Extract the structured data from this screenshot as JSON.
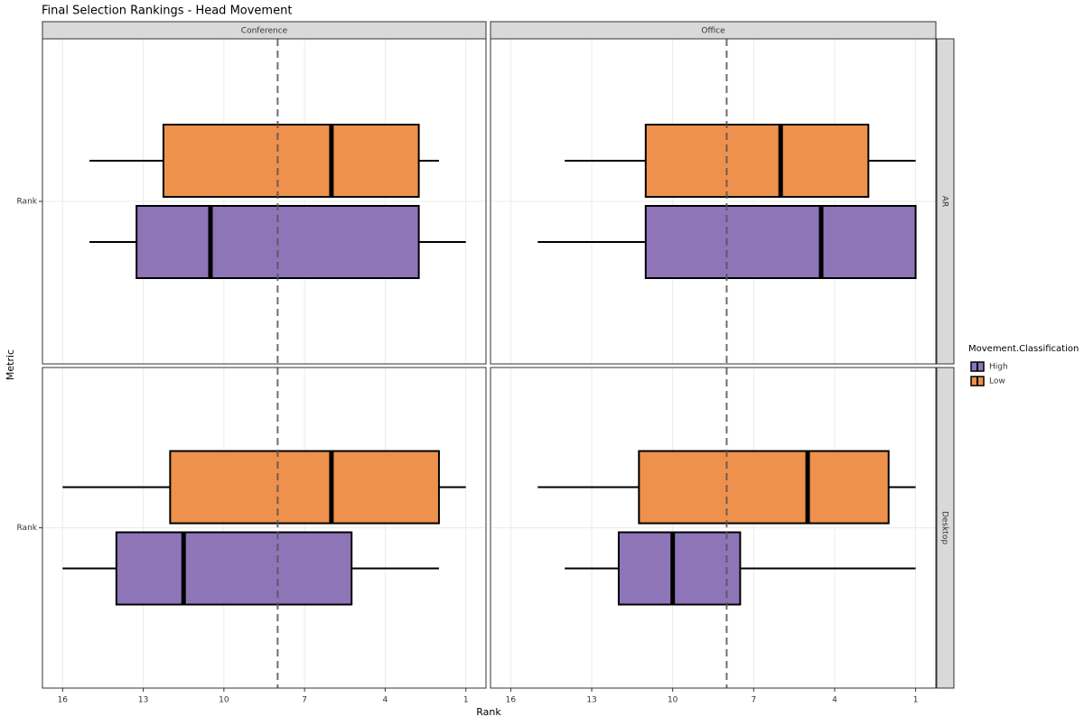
{
  "chart_data": {
    "type": "boxplot",
    "title": "Final Selection Rankings - Head Movement",
    "x_label": "Rank",
    "y_label": "Metric",
    "facet_columns": [
      "Conference",
      "Office"
    ],
    "facet_rows": [
      "AR",
      "Desktop"
    ],
    "y_categories": [
      "Rank"
    ],
    "xlim": [
      16.75,
      0.25
    ],
    "xticks": [
      16,
      13,
      10,
      7,
      4,
      1
    ],
    "grid": true,
    "reference_line": 8,
    "legend_title": "Movement.Classification",
    "legend_position": "right",
    "series": [
      {
        "name": "High",
        "color": "#8e75b8",
        "boxes": [
          {
            "min": 1,
            "q1": 2.75,
            "median": 10.5,
            "q3": 13.25,
            "max": 15
          },
          {
            "min": 1,
            "q1": 1,
            "median": 4.5,
            "q3": 11,
            "max": 15
          },
          {
            "min": 2,
            "q1": 5.25,
            "median": 11.5,
            "q3": 14,
            "max": 16
          },
          {
            "min": 1,
            "q1": 7.5,
            "median": 10,
            "q3": 12,
            "max": 14
          }
        ]
      },
      {
        "name": "Low",
        "color": "#ee914c",
        "boxes": [
          {
            "min": 2,
            "q1": 2.75,
            "median": 6,
            "q3": 12.25,
            "max": 15
          },
          {
            "min": 1,
            "q1": 2.75,
            "median": 6,
            "q3": 11,
            "max": 14
          },
          {
            "min": 1,
            "q1": 2,
            "median": 6,
            "q3": 12,
            "max": 16
          },
          {
            "min": 1,
            "q1": 2,
            "median": 5,
            "q3": 11.25,
            "max": 15
          }
        ]
      }
    ]
  }
}
